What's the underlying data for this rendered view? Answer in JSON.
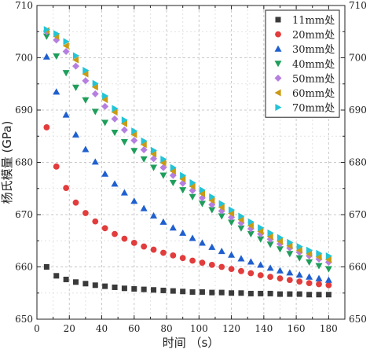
{
  "chart_data": {
    "type": "scatter",
    "xlabel": "时间 （s）",
    "ylabel": "杨氏模量 (GPa)",
    "xlim": [
      0,
      190
    ],
    "ylim": [
      650,
      710
    ],
    "xticks": [
      0,
      20,
      40,
      60,
      80,
      100,
      120,
      140,
      160,
      180
    ],
    "yticks": [
      650,
      660,
      670,
      680,
      690,
      700,
      710
    ],
    "grid": true,
    "legend_position": "top-right",
    "x": [
      6,
      12,
      18,
      24,
      30,
      36,
      42,
      48,
      54,
      60,
      66,
      72,
      78,
      84,
      90,
      96,
      102,
      108,
      114,
      120,
      126,
      132,
      138,
      144,
      150,
      156,
      162,
      168,
      174,
      180
    ],
    "series": [
      {
        "name": "11mm处",
        "color": "#3a3a3a",
        "marker": "square",
        "values": [
          660.0,
          658.3,
          657.6,
          657.1,
          656.8,
          656.5,
          656.3,
          656.1,
          655.9,
          655.8,
          655.7,
          655.6,
          655.5,
          655.4,
          655.3,
          655.2,
          655.2,
          655.1,
          655.1,
          655.0,
          655.0,
          654.9,
          654.9,
          654.9,
          654.8,
          654.8,
          654.8,
          654.7,
          654.7,
          654.7
        ]
      },
      {
        "name": "20mm处",
        "color": "#e23c3c",
        "marker": "circle",
        "values": [
          686.7,
          679.2,
          675.1,
          672.3,
          670.3,
          668.7,
          667.4,
          666.3,
          665.4,
          664.6,
          663.9,
          663.3,
          662.7,
          662.2,
          661.7,
          661.2,
          660.8,
          660.4,
          660.0,
          659.6,
          659.2,
          658.8,
          658.4,
          658.1,
          657.8,
          657.5,
          657.2,
          656.9,
          656.7,
          656.5
        ]
      },
      {
        "name": "30mm处",
        "color": "#1f5fcf",
        "marker": "triangle-up",
        "values": [
          700.2,
          693.5,
          689.1,
          685.3,
          682.5,
          680.1,
          677.8,
          675.9,
          674.2,
          672.6,
          671.2,
          669.8,
          668.6,
          667.5,
          666.5,
          665.5,
          664.6,
          663.8,
          663.0,
          662.3,
          661.6,
          661.0,
          660.4,
          659.8,
          659.3,
          658.9,
          658.5,
          658.1,
          657.8,
          657.5
        ]
      },
      {
        "name": "40mm处",
        "color": "#1e9e5a",
        "marker": "triangle-down",
        "values": [
          704.1,
          700.3,
          697.1,
          694.3,
          691.9,
          689.7,
          687.6,
          685.7,
          683.9,
          682.2,
          680.6,
          679.0,
          677.5,
          676.1,
          674.7,
          673.4,
          672.1,
          670.9,
          669.7,
          668.5,
          667.4,
          666.3,
          665.3,
          664.3,
          663.4,
          662.5,
          661.7,
          660.9,
          660.2,
          659.6
        ]
      },
      {
        "name": "50mm处",
        "color": "#b57fe0",
        "marker": "diamond",
        "values": [
          705.0,
          703.4,
          701.2,
          698.4,
          695.6,
          693.1,
          690.7,
          688.3,
          686.2,
          684.2,
          682.4,
          680.7,
          679.0,
          677.5,
          676.0,
          674.6,
          673.2,
          671.9,
          670.7,
          669.5,
          668.4,
          667.3,
          666.3,
          665.3,
          664.4,
          663.6,
          662.8,
          662.1,
          661.5,
          660.9
        ]
      },
      {
        "name": "60mm处",
        "color": "#c99a14",
        "marker": "triangle-left",
        "values": [
          705.2,
          704.1,
          702.3,
          699.6,
          696.9,
          694.4,
          692.0,
          689.6,
          687.4,
          685.3,
          683.4,
          681.6,
          679.9,
          678.3,
          676.8,
          675.4,
          674.0,
          672.7,
          671.4,
          670.2,
          669.0,
          667.9,
          666.8,
          665.8,
          664.9,
          664.0,
          663.2,
          662.5,
          661.9,
          661.4
        ]
      },
      {
        "name": "70mm处",
        "color": "#22c4d6",
        "marker": "triangle-right",
        "values": [
          705.4,
          704.6,
          703.1,
          700.4,
          697.6,
          695.1,
          692.7,
          690.3,
          688.1,
          686.0,
          684.1,
          682.3,
          680.6,
          679.0,
          677.5,
          676.1,
          674.7,
          673.4,
          672.1,
          670.9,
          669.7,
          668.6,
          667.5,
          666.5,
          665.6,
          664.7,
          663.9,
          663.2,
          662.6,
          662.1
        ]
      }
    ]
  }
}
